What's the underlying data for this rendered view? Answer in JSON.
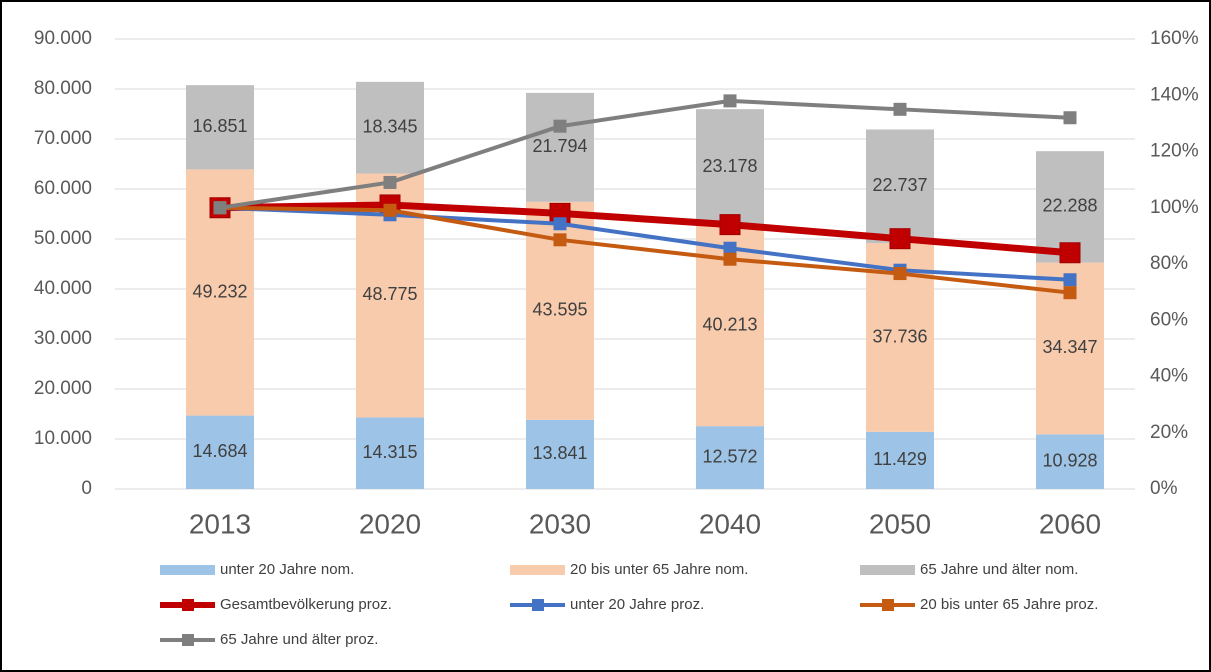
{
  "chart_data": {
    "type": "bar",
    "stacked": true,
    "categories": [
      "2013",
      "2020",
      "2030",
      "2040",
      "2050",
      "2060"
    ],
    "ylim": [
      0,
      90000
    ],
    "yticks": [
      0,
      {
        "value": 10000,
        "label": "10.000"
      },
      {
        "value": 20000,
        "label": "20.000"
      },
      {
        "value": 30000,
        "label": "30.000"
      },
      {
        "value": 40000,
        "label": "40.000"
      },
      {
        "value": 50000,
        "label": "50.000"
      },
      {
        "value": 60000,
        "label": "60.000"
      },
      {
        "value": 70000,
        "label": "70.000"
      },
      {
        "value": 80000,
        "label": "80.000"
      },
      {
        "value": 90000,
        "label": "90.000"
      }
    ],
    "y2lim": [
      0,
      160
    ],
    "y2ticks": [
      {
        "value": 0,
        "label": "0%"
      },
      {
        "value": 20,
        "label": "20%"
      },
      {
        "value": 40,
        "label": "40%"
      },
      {
        "value": 60,
        "label": "60%"
      },
      {
        "value": 80,
        "label": "80%"
      },
      {
        "value": 100,
        "label": "100%"
      },
      {
        "value": 120,
        "label": "120%"
      },
      {
        "value": 140,
        "label": "140%"
      },
      {
        "value": 160,
        "label": "160%"
      }
    ],
    "grid": true,
    "legend": "bottom",
    "series": [
      {
        "name": "unter 20 Jahre nom.",
        "type": "bar",
        "color": "#9dc3e6",
        "values": [
          14684,
          14315,
          13841,
          12572,
          11429,
          10928
        ],
        "value_labels": [
          "14.684",
          "14.315",
          "13.841",
          "12.572",
          "11.429",
          "10.928"
        ]
      },
      {
        "name": "20 bis unter 65 Jahre nom.",
        "type": "bar",
        "color": "#f8cbad",
        "values": [
          49232,
          48775,
          43595,
          40213,
          37736,
          34347
        ],
        "value_labels": [
          "49.232",
          "48.775",
          "43.595",
          "40.213",
          "37.736",
          "34.347"
        ]
      },
      {
        "name": "65 Jahre und älter nom.",
        "type": "bar",
        "color": "#bfbfbf",
        "values": [
          16851,
          18345,
          21794,
          23178,
          22737,
          22288
        ],
        "value_labels": [
          "16.851",
          "18.345",
          "21.794",
          "23.178",
          "22.737",
          "22.288"
        ]
      },
      {
        "name": "Gesamtbevölkerung proz.",
        "type": "line",
        "axis": "y2",
        "color": "#c00000",
        "values": [
          100,
          101,
          98,
          94,
          89,
          84
        ]
      },
      {
        "name": "unter 20 Jahre proz.",
        "type": "line",
        "axis": "y2",
        "color": "#4472c4",
        "values": [
          100,
          97.5,
          94.3,
          85.6,
          77.8,
          74.4
        ]
      },
      {
        "name": "20 bis unter 65 Jahre proz.",
        "type": "line",
        "axis": "y2",
        "color": "#c55a11",
        "values": [
          100,
          99.1,
          88.6,
          81.7,
          76.6,
          69.8
        ]
      },
      {
        "name": "65 Jahre und älter proz.",
        "type": "line",
        "axis": "y2",
        "color": "#7f7f7f",
        "values": [
          100,
          109,
          129,
          138,
          135,
          132
        ]
      }
    ]
  }
}
